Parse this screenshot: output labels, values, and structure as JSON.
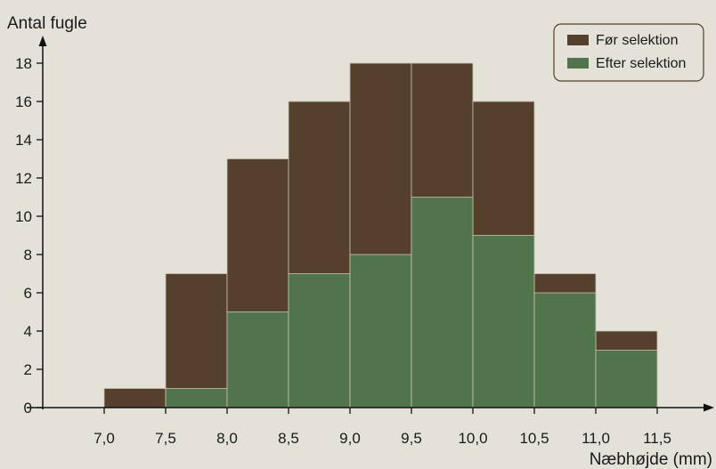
{
  "chart_data": {
    "type": "bar",
    "ylabel": "Antal fugle",
    "xlabel": "Næbhøjde (mm)",
    "x_ticks": [
      "7,0",
      "7,5",
      "8,0",
      "8,5",
      "9,0",
      "9,5",
      "10,0",
      "10,5",
      "11,0",
      "11,5"
    ],
    "y_ticks": [
      "0",
      "2",
      "4",
      "6",
      "8",
      "10",
      "12",
      "14",
      "16",
      "18"
    ],
    "ylim": [
      0,
      19
    ],
    "bins": [
      [
        7.0,
        7.5
      ],
      [
        7.5,
        8.0
      ],
      [
        8.0,
        8.5
      ],
      [
        8.5,
        9.0
      ],
      [
        9.0,
        9.5
      ],
      [
        9.5,
        10.0
      ],
      [
        10.0,
        10.5
      ],
      [
        10.5,
        11.0
      ],
      [
        11.0,
        11.5
      ]
    ],
    "series": [
      {
        "name": "Før selektion",
        "color": "#54402c",
        "values": [
          1,
          7,
          13,
          16,
          18,
          18,
          16,
          7,
          4
        ]
      },
      {
        "name": "Efter selektion",
        "color": "#51744d",
        "values": [
          0,
          1,
          5,
          7,
          8,
          11,
          9,
          6,
          3
        ]
      }
    ],
    "legend": "top-right",
    "grid": false
  }
}
